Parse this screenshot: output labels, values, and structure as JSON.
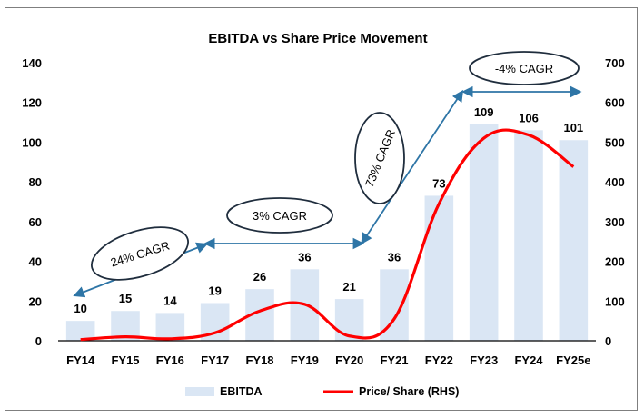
{
  "chart_data": {
    "type": "bar+line",
    "title": "EBITDA vs Share Price Movement",
    "categories": [
      "FY14",
      "FY15",
      "FY16",
      "FY17",
      "FY18",
      "FY19",
      "FY20",
      "FY21",
      "FY22",
      "FY23",
      "FY24",
      "FY25e"
    ],
    "series": [
      {
        "name": "EBITDA",
        "type": "bar",
        "axis": "left",
        "color": "#dae6f4",
        "values": [
          10,
          15,
          14,
          19,
          26,
          36,
          21,
          36,
          73,
          109,
          106,
          101
        ]
      },
      {
        "name": "Price/ Share (RHS)",
        "type": "line",
        "axis": "right",
        "color": "#ff0000",
        "values": [
          3,
          10,
          5,
          20,
          75,
          92,
          12,
          55,
          345,
          510,
          518,
          438
        ]
      }
    ],
    "data_labels": [
      "10",
      "15",
      "14",
      "19",
      "26",
      "36",
      "21",
      "36",
      "73",
      "109",
      "106",
      "101"
    ],
    "y_left": {
      "min": 0,
      "max": 140,
      "ticks": [
        0,
        20,
        40,
        60,
        80,
        100,
        120,
        140
      ]
    },
    "y_right": {
      "min": 0,
      "max": 700,
      "ticks": [
        0,
        100,
        200,
        300,
        400,
        500,
        600,
        700
      ]
    },
    "annotations": [
      {
        "text": "24% CAGR",
        "from": "FY14",
        "to": "FY17"
      },
      {
        "text": "3% CAGR",
        "from": "FY17",
        "to": "FY20"
      },
      {
        "text": "73% CAGR",
        "from": "FY20",
        "to": "FY23"
      },
      {
        "text": "-4% CAGR",
        "from": "FY23",
        "to": "FY25e"
      }
    ],
    "legend": "bottom",
    "grid": false
  }
}
